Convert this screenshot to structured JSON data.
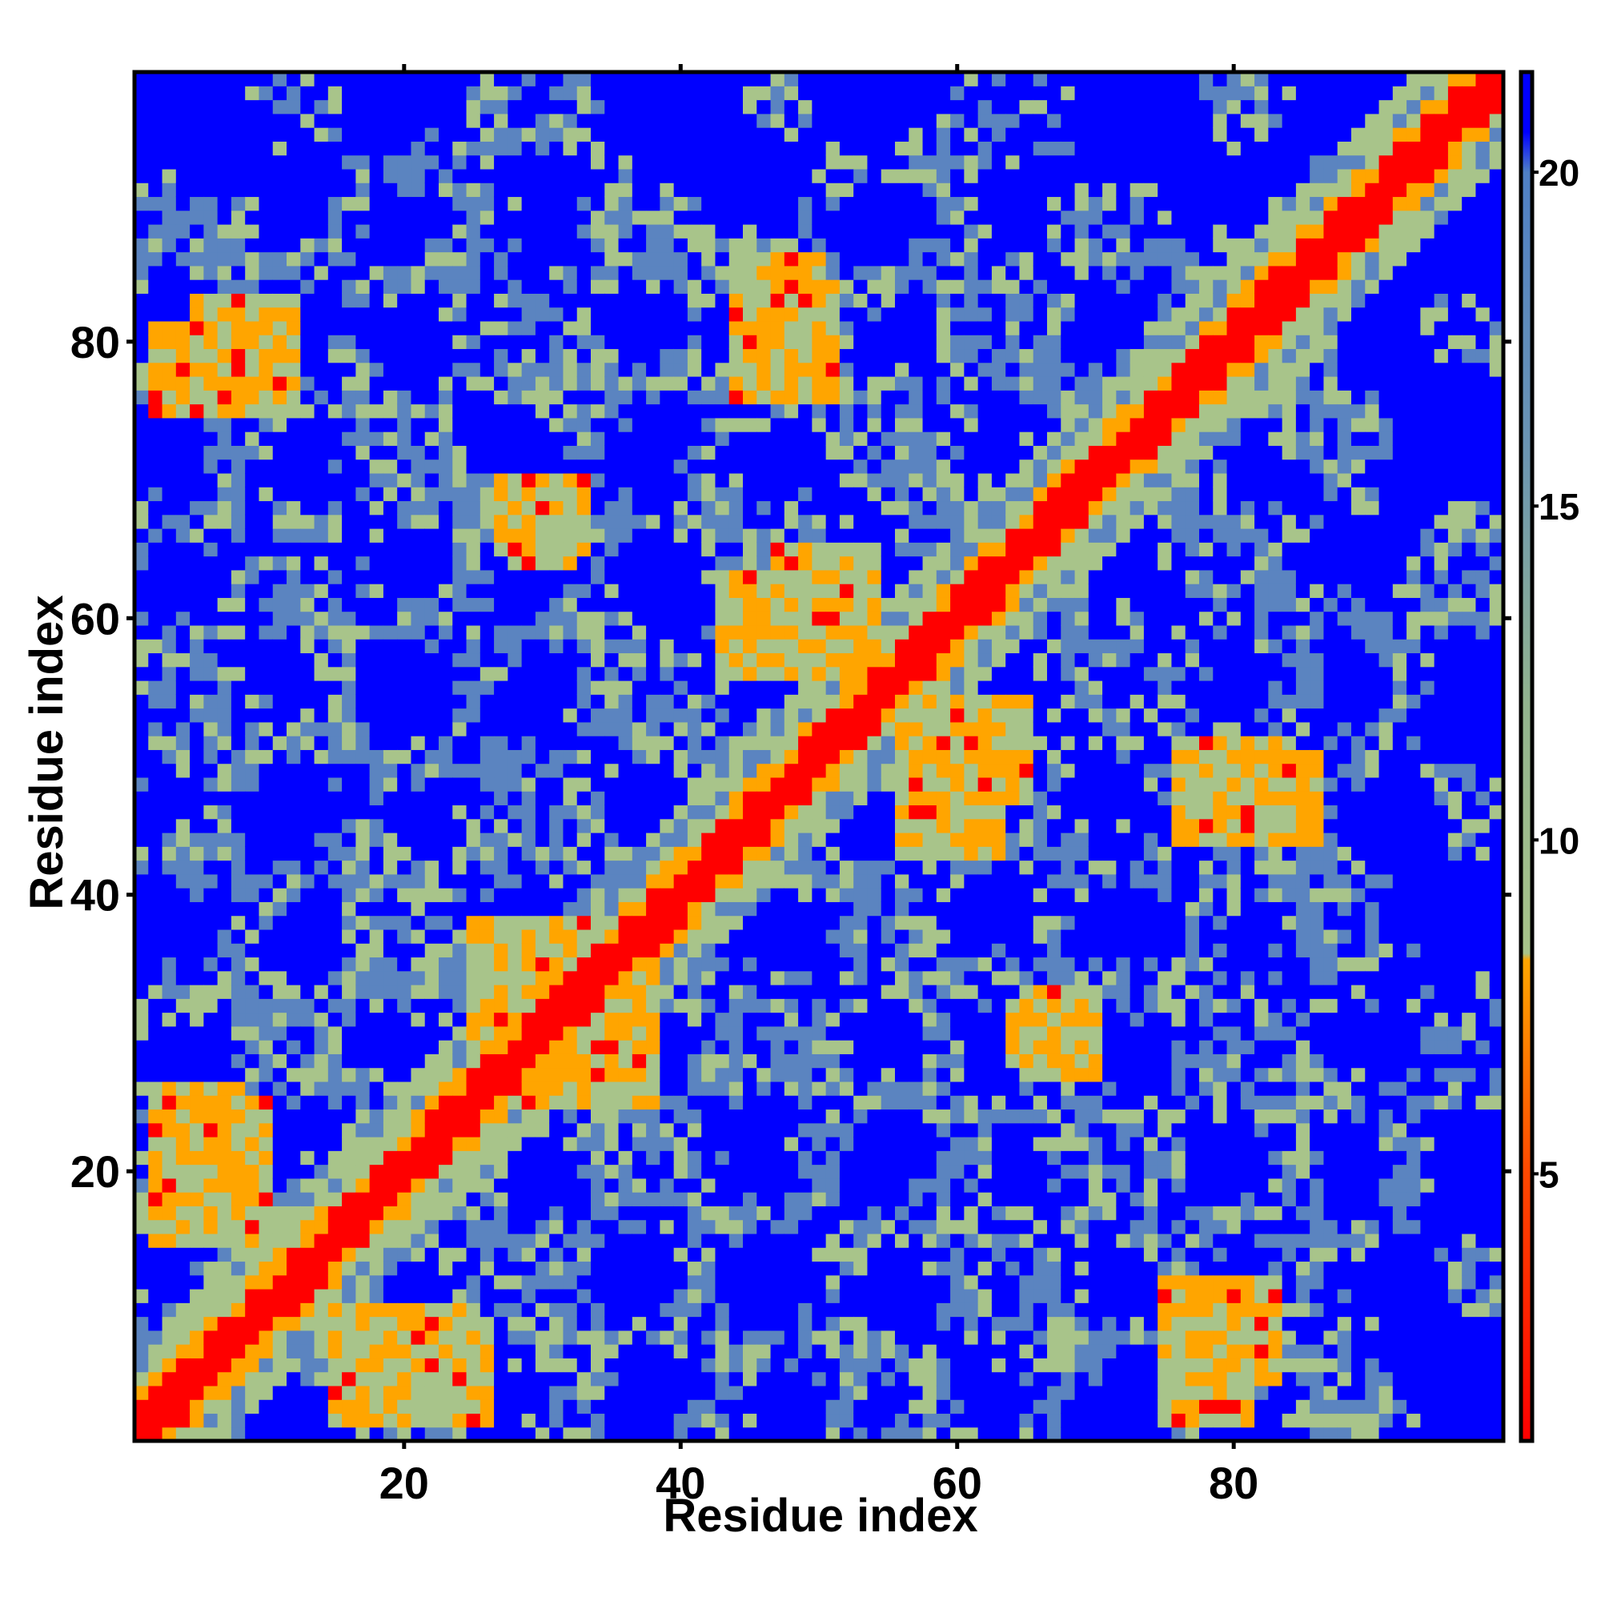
{
  "chart_data": {
    "type": "heatmap",
    "title": "",
    "xlabel": "Residue index",
    "ylabel": "Residue index",
    "n_residues": 99,
    "xlim": [
      1,
      99
    ],
    "ylim": [
      1,
      99
    ],
    "x_ticks": [
      20,
      40,
      60,
      80
    ],
    "y_ticks": [
      20,
      40,
      60,
      80
    ],
    "x_tick_labels": [
      "20",
      "40",
      "60",
      "80"
    ],
    "y_tick_labels": [
      "20",
      "40",
      "60",
      "80"
    ],
    "colorbar": {
      "range": [
        1,
        21.5
      ],
      "ticks": [
        5,
        10,
        15,
        20
      ],
      "tick_labels": [
        "5",
        "10",
        "15",
        "20"
      ],
      "stops": [
        {
          "value": 1,
          "color": "#ff0000"
        },
        {
          "value": 5,
          "color": "#ff4800"
        },
        {
          "value": 8.2,
          "color": "#ffa500"
        },
        {
          "value": 8.3,
          "color": "#a8c48a"
        },
        {
          "value": 12,
          "color": "#92b48e"
        },
        {
          "value": 16,
          "color": "#6a94b4"
        },
        {
          "value": 20,
          "color": "#4f80c6"
        },
        {
          "value": 20.6,
          "color": "#0000ff"
        },
        {
          "value": 21.5,
          "color": "#0000ff"
        }
      ]
    },
    "colors": {
      "contact": "#ff0000",
      "close": "#ffa500",
      "medium": "#a8c48a",
      "far": "#5b84c0",
      "no_contact": "#0000ff"
    },
    "contact_bands": [
      {
        "x": [
          1,
          99
        ],
        "y": [
          1,
          99
        ],
        "kind": "main diagonal"
      },
      {
        "x": [
          15,
          26
        ],
        "y": [
          2,
          8
        ],
        "kind": "beta contact"
      },
      {
        "x": [
          2,
          10
        ],
        "y": [
          15,
          25
        ],
        "kind": "beta contact"
      },
      {
        "x": [
          25,
          37
        ],
        "y": [
          27,
          38
        ],
        "kind": "helix band"
      },
      {
        "x": [
          44,
          50
        ],
        "y": [
          77,
          86
        ],
        "kind": "beta contact"
      },
      {
        "x": [
          47,
          54
        ],
        "y": [
          57,
          65
        ],
        "kind": "beta contact"
      },
      {
        "x": [
          56,
          63
        ],
        "y": [
          43,
          54
        ],
        "kind": "beta contact"
      },
      {
        "x": [
          76,
          84
        ],
        "y": [
          44,
          51
        ],
        "kind": "beta contact"
      },
      {
        "x": [
          75,
          81
        ],
        "y": [
          2,
          11
        ],
        "kind": "beta contact"
      },
      {
        "x": [
          65,
          70
        ],
        "y": [
          27,
          33
        ],
        "kind": "beta contact"
      },
      {
        "x": [
          5,
          12
        ],
        "y": [
          75,
          83
        ],
        "kind": "beta contact"
      },
      {
        "x": [
          28,
          32
        ],
        "y": [
          64,
          70
        ],
        "kind": "beta contact"
      }
    ]
  }
}
